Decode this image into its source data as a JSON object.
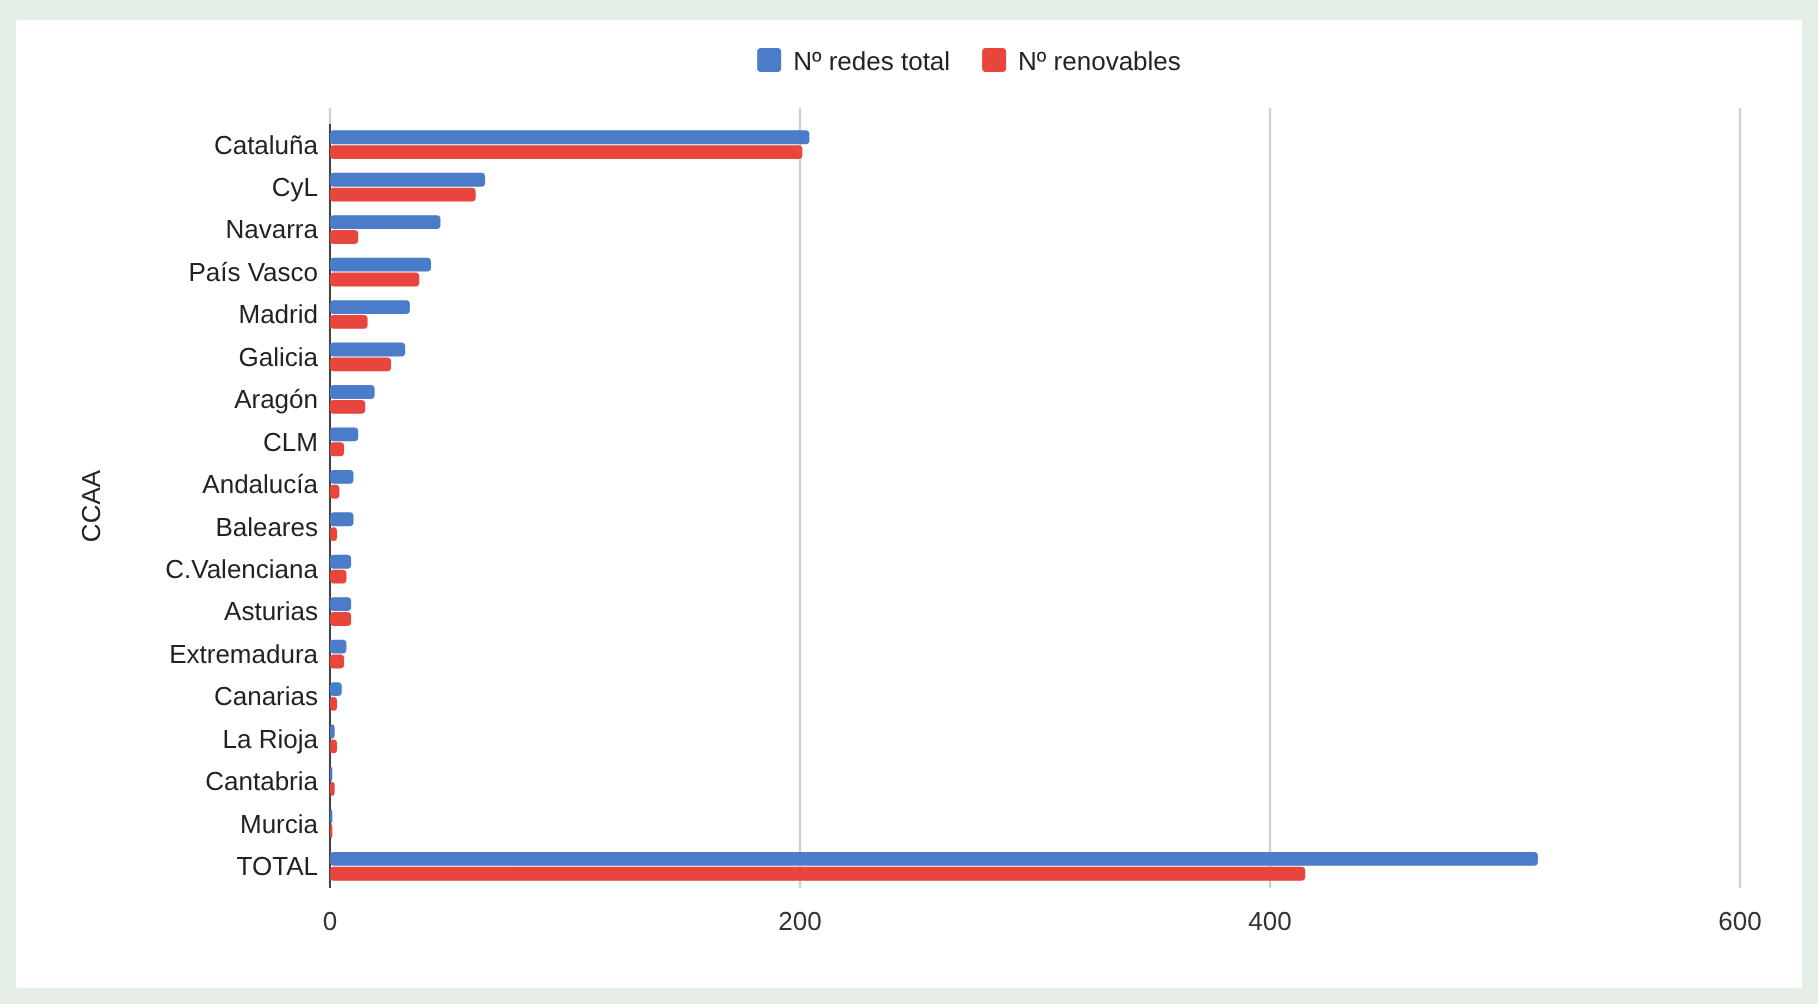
{
  "chart_data": {
    "type": "bar",
    "orientation": "horizontal",
    "ylabel": "CCAA",
    "categories": [
      "Cataluña",
      "CyL",
      "Navarra",
      "País Vasco",
      "Madrid",
      "Galicia",
      "Aragón",
      "CLM",
      "Andalucía",
      "Baleares",
      "C.Valenciana",
      "Asturias",
      "Extremadura",
      "Canarias",
      "La Rioja",
      "Cantabria",
      "Murcia",
      "TOTAL"
    ],
    "series": [
      {
        "name": "Nº redes total",
        "color": "#4a7cc9",
        "values": [
          204,
          66,
          47,
          43,
          34,
          32,
          19,
          12,
          10,
          10,
          9,
          9,
          7,
          5,
          2,
          1,
          1,
          514
        ]
      },
      {
        "name": "Nº renovables",
        "color": "#e8453c",
        "values": [
          201,
          62,
          12,
          38,
          16,
          26,
          15,
          6,
          4,
          3,
          7,
          9,
          6,
          3,
          3,
          2,
          1,
          415
        ]
      }
    ],
    "xlim": [
      0,
      600
    ],
    "xticks": [
      0,
      200,
      400,
      600
    ],
    "grid": "x",
    "legend": "top"
  }
}
